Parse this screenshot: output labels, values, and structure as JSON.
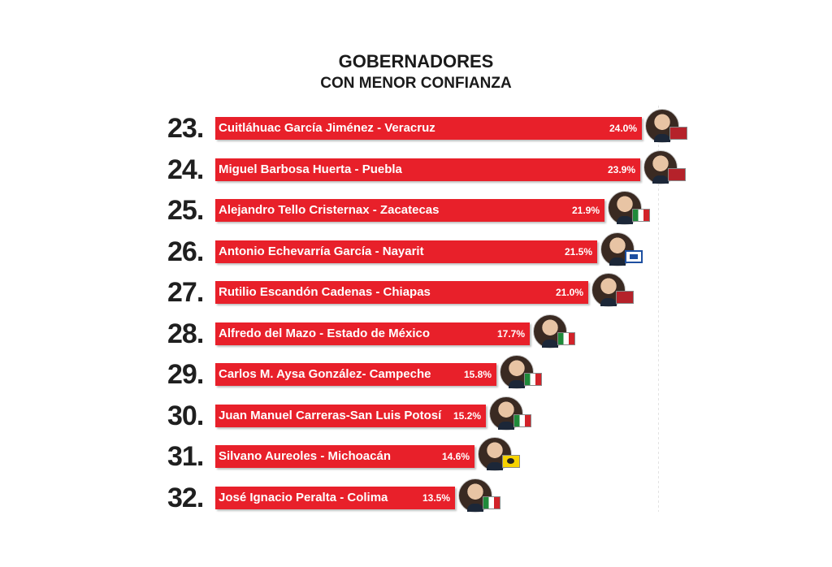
{
  "chart_data": {
    "type": "bar",
    "orientation": "horizontal",
    "title": "GOBERNADORES",
    "subtitle": "CON MENOR CONFIANZA",
    "xlim": [
      0,
      24.0
    ],
    "bar_color": "#e8202a",
    "rows": [
      {
        "rank": "23.",
        "label": "Cuitláhuac García Jiménez - Veracruz",
        "value": 24.0,
        "value_label": "24.0%",
        "party_logo": "morena-logo"
      },
      {
        "rank": "24.",
        "label": "Miguel Barbosa Huerta - Puebla",
        "value": 23.9,
        "value_label": "23.9%",
        "party_logo": "morena-logo"
      },
      {
        "rank": "25.",
        "label": "Alejandro Tello Cristernax - Zacatecas",
        "value": 21.9,
        "value_label": "21.9%",
        "party_logo": "pri-logo"
      },
      {
        "rank": "26.",
        "label": "Antonio Echevarría García - Nayarit",
        "value": 21.5,
        "value_label": "21.5%",
        "party_logo": "pan-logo"
      },
      {
        "rank": "27.",
        "label": "Rutilio Escandón Cadenas - Chiapas",
        "value": 21.0,
        "value_label": "21.0%",
        "party_logo": "morena-logo"
      },
      {
        "rank": "28.",
        "label": "Alfredo del Mazo - Estado de México",
        "value": 17.7,
        "value_label": "17.7%",
        "party_logo": "pri-logo"
      },
      {
        "rank": "29.",
        "label": "Carlos M. Aysa González- Campeche",
        "value": 15.8,
        "value_label": "15.8%",
        "party_logo": "pri-logo"
      },
      {
        "rank": "30.",
        "label": "Juan Manuel Carreras-San Luis Potosí",
        "value": 15.2,
        "value_label": "15.2%",
        "party_logo": "pri-logo"
      },
      {
        "rank": "31.",
        "label": "Silvano Aureoles - Michoacán",
        "value": 14.6,
        "value_label": "14.6%",
        "party_logo": "prd-logo"
      },
      {
        "rank": "32.",
        "label": "José Ignacio Peralta - Colima",
        "value": 13.5,
        "value_label": "13.5%",
        "party_logo": "pri-logo"
      }
    ]
  }
}
